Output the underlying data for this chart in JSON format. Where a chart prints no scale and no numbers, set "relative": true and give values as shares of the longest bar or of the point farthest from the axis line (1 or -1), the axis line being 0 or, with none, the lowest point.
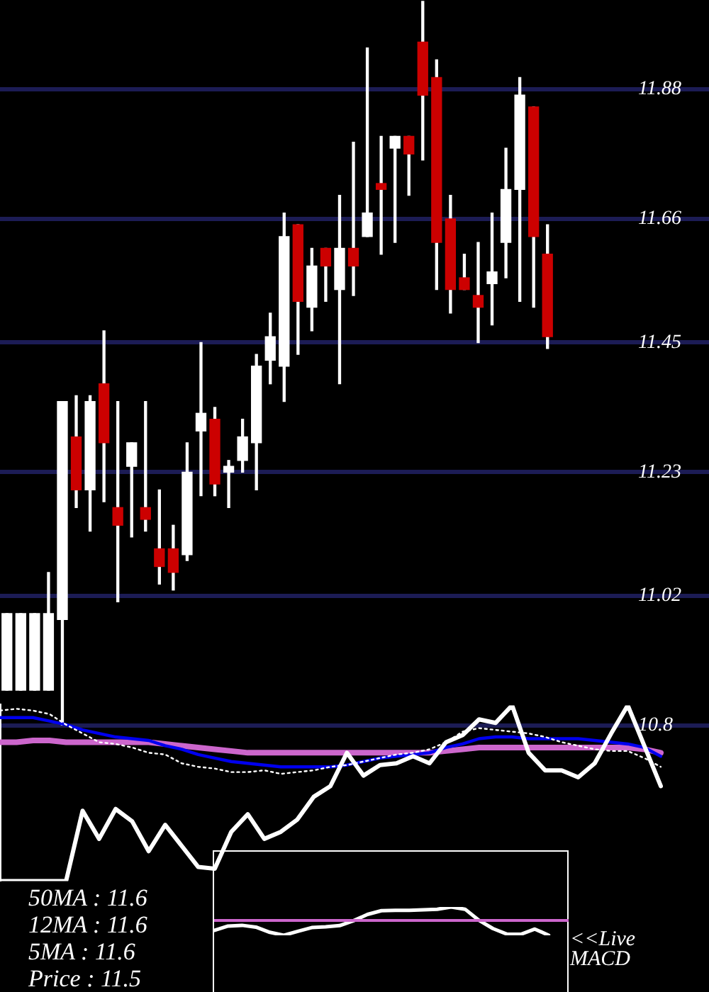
{
  "chart_data": [
    {
      "type": "candlestick",
      "categories": [
        null,
        null,
        null,
        null,
        null,
        null,
        null,
        null,
        null,
        null,
        null,
        null,
        null,
        null,
        null,
        null,
        null,
        null,
        null,
        null,
        null,
        null,
        null,
        null,
        null,
        null,
        null,
        null,
        null,
        null,
        null,
        null,
        null,
        null,
        null,
        null,
        null,
        null,
        null,
        null
      ],
      "ohlc": [
        [
          10.86,
          10.99,
          10.86,
          10.99
        ],
        [
          10.86,
          10.99,
          10.86,
          10.99
        ],
        [
          10.86,
          10.99,
          10.86,
          10.99
        ],
        [
          10.86,
          11.06,
          10.86,
          10.99
        ],
        [
          10.98,
          11.35,
          10.8,
          11.35
        ],
        [
          11.29,
          11.36,
          11.17,
          11.2
        ],
        [
          11.2,
          11.36,
          11.13,
          11.35
        ],
        [
          11.38,
          11.47,
          11.18,
          11.28
        ],
        [
          11.17,
          11.35,
          11.01,
          11.14
        ],
        [
          11.24,
          11.28,
          11.12,
          11.28
        ],
        [
          11.17,
          11.35,
          11.13,
          11.15
        ],
        [
          11.1,
          11.2,
          11.04,
          11.07
        ],
        [
          11.1,
          11.14,
          11.03,
          11.06
        ],
        [
          11.09,
          11.28,
          11.08,
          11.23
        ],
        [
          11.3,
          11.45,
          11.19,
          11.33
        ],
        [
          11.32,
          11.34,
          11.19,
          11.21
        ],
        [
          11.23,
          11.25,
          11.17,
          11.24
        ],
        [
          11.25,
          11.32,
          11.23,
          11.29
        ],
        [
          11.28,
          11.43,
          11.2,
          11.41
        ],
        [
          11.42,
          11.5,
          11.38,
          11.46
        ],
        [
          11.41,
          11.67,
          11.35,
          11.63
        ],
        [
          11.65,
          11.65,
          11.43,
          11.52
        ],
        [
          11.51,
          11.61,
          11.47,
          11.58
        ],
        [
          11.61,
          11.61,
          11.52,
          11.58
        ],
        [
          11.54,
          11.7,
          11.38,
          11.61
        ],
        [
          11.61,
          11.79,
          11.53,
          11.58
        ],
        [
          11.63,
          11.95,
          11.63,
          11.67
        ],
        [
          11.72,
          11.8,
          11.6,
          11.71
        ],
        [
          11.78,
          11.8,
          11.62,
          11.8
        ],
        [
          11.8,
          11.8,
          11.7,
          11.77
        ],
        [
          11.96,
          12.03,
          11.76,
          11.87
        ],
        [
          11.9,
          11.93,
          11.54,
          11.62
        ],
        [
          11.66,
          11.7,
          11.5,
          11.54
        ],
        [
          11.56,
          11.6,
          11.54,
          11.54
        ],
        [
          11.53,
          11.62,
          11.45,
          11.51
        ],
        [
          11.55,
          11.67,
          11.48,
          11.57
        ],
        [
          11.62,
          11.78,
          11.56,
          11.71
        ],
        [
          11.71,
          11.9,
          11.52,
          11.87
        ],
        [
          11.85,
          11.85,
          11.51,
          11.63
        ],
        [
          11.6,
          11.65,
          11.44,
          11.46
        ]
      ],
      "colors": [
        "#ffffff",
        "#ffffff",
        "#ffffff",
        "#ffffff",
        "#ffffff",
        "#cc0000",
        "#ffffff",
        "#cc0000",
        "#cc0000",
        "#ffffff",
        "#cc0000",
        "#cc0000",
        "#cc0000",
        "#ffffff",
        "#ffffff",
        "#cc0000",
        "#ffffff",
        "#ffffff",
        "#ffffff",
        "#ffffff",
        "#ffffff",
        "#cc0000",
        "#ffffff",
        "#cc0000",
        "#ffffff",
        "#cc0000",
        "#ffffff",
        "#cc0000",
        "#ffffff",
        "#cc0000",
        "#cc0000",
        "#cc0000",
        "#cc0000",
        "#cc0000",
        "#cc0000",
        "#ffffff",
        "#ffffff",
        "#ffffff",
        "#cc0000",
        "#cc0000"
      ],
      "ylim": [
        10.8,
        12.03
      ],
      "yticks": [
        10.8,
        11.02,
        11.23,
        11.45,
        11.66,
        11.88
      ],
      "grid": "y",
      "tick_labels": "y"
    },
    {
      "type": "line",
      "relative": true,
      "categories": [
        null,
        null,
        null,
        null,
        null,
        null,
        null,
        null,
        null,
        null,
        null,
        null,
        null,
        null,
        null,
        null,
        null,
        null,
        null,
        null,
        null,
        null,
        null,
        null,
        null,
        null,
        null,
        null,
        null,
        null,
        null,
        null,
        null,
        null,
        null,
        null,
        null,
        null,
        null,
        null,
        null
      ],
      "series": [
        {
          "color": "#ffffff",
          "values": [
            0,
            0,
            0,
            0,
            0,
            0.4,
            0.24,
            0.41,
            0.34,
            0.17,
            0.32,
            0.2,
            0.08,
            0.07,
            0.28,
            0.38,
            0.24,
            0.28,
            0.35,
            0.48,
            0.54,
            0.73,
            0.6,
            0.66,
            0.67,
            0.71,
            0.67,
            0.79,
            0.83,
            0.92,
            0.9,
            1,
            0.73,
            0.63,
            0.63,
            0.59,
            0.67,
            0.84,
            1,
            0.77,
            0.54
          ]
        },
        {
          "color": "#ffffff",
          "line_style": "dotted",
          "values": [
            0.97,
            0.98,
            0.97,
            0.95,
            0.89,
            0.84,
            0.79,
            0.78,
            0.76,
            0.73,
            0.72,
            0.67,
            0.65,
            0.64,
            0.62,
            0.62,
            0.63,
            0.61,
            0.62,
            0.63,
            0.65,
            0.66,
            0.68,
            0.7,
            0.72,
            0.73,
            0.75,
            0.79,
            0.85,
            0.87,
            0.86,
            0.85,
            0.84,
            0.82,
            0.79,
            0.77,
            0.75,
            0.74,
            0.74,
            0.7,
            0.65
          ]
        },
        {
          "color": "#0000ee",
          "values": [
            0.93,
            0.93,
            0.93,
            0.91,
            0.89,
            0.86,
            0.84,
            0.82,
            0.81,
            0.8,
            0.77,
            0.75,
            0.72,
            0.7,
            0.68,
            0.67,
            0.66,
            0.65,
            0.65,
            0.65,
            0.65,
            0.66,
            0.68,
            0.7,
            0.71,
            0.72,
            0.73,
            0.76,
            0.78,
            0.81,
            0.82,
            0.82,
            0.81,
            0.81,
            0.81,
            0.81,
            0.8,
            0.79,
            0.78,
            0.76,
            0.71
          ]
        },
        {
          "color": "#cc66cc",
          "values": [
            0.79,
            0.79,
            0.8,
            0.8,
            0.79,
            0.79,
            0.79,
            0.79,
            0.79,
            0.79,
            0.78,
            0.77,
            0.76,
            0.75,
            0.74,
            0.73,
            0.73,
            0.73,
            0.73,
            0.73,
            0.73,
            0.73,
            0.73,
            0.73,
            0.73,
            0.73,
            0.73,
            0.74,
            0.75,
            0.76,
            0.76,
            0.76,
            0.76,
            0.76,
            0.76,
            0.76,
            0.76,
            0.76,
            0.76,
            0.75,
            0.73
          ]
        }
      ],
      "annotations": [
        "50MA : 11.6",
        "12MA : 11.6",
        "5MA : 11.6",
        "Price : 11.5"
      ]
    },
    {
      "type": "line",
      "relative": true,
      "categories": [
        null,
        null,
        null,
        null,
        null,
        null,
        null,
        null,
        null,
        null,
        null,
        null,
        null,
        null,
        null,
        null,
        null,
        null,
        null,
        null,
        null,
        null,
        null,
        null,
        null
      ],
      "series": [
        {
          "color": "#ffffff",
          "values": [
            -0.67,
            -0.38,
            -0.33,
            -0.45,
            -0.8,
            -1,
            -0.73,
            -0.48,
            -0.43,
            -0.35,
            -0.02,
            0.4,
            0.65,
            0.67,
            0.68,
            0.71,
            0.75,
            0.9,
            0.75,
            0,
            -0.55,
            -0.92,
            -0.93,
            -0.58,
            -1
          ]
        }
      ],
      "ref_lines": [
        {
          "axis": "y",
          "value": 0,
          "color": "#cc66cc"
        }
      ],
      "annotations": [
        "<<Live MACD"
      ]
    }
  ]
}
